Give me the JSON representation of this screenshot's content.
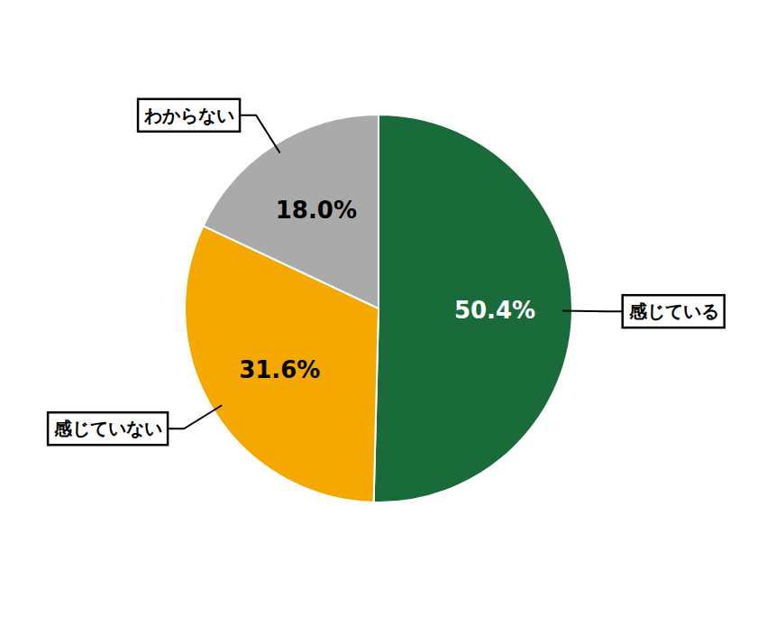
{
  "chart_data": {
    "type": "pie",
    "categories": [
      "感じている",
      "感じていない",
      "わからない"
    ],
    "values": [
      50.4,
      31.6,
      18.0
    ],
    "value_labels": [
      "50.4%",
      "31.6%",
      "18.0%"
    ],
    "colors": [
      "#1a6b3a",
      "#f5a800",
      "#aaaaaa"
    ],
    "data_labels": true
  }
}
